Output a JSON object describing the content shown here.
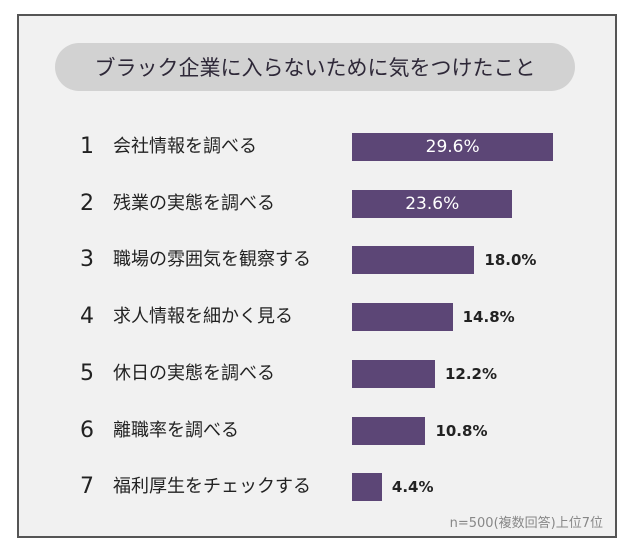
{
  "chart_data": {
    "type": "bar",
    "orientation": "horizontal",
    "title": "ブラック企業に入らないために気をつけたこと",
    "ranks": [
      "1",
      "2",
      "3",
      "4",
      "5",
      "6",
      "7"
    ],
    "categories": [
      "会社情報を調べる",
      "残業の実態を調べる",
      "職場の雰囲気を観察する",
      "求人情報を細かく見る",
      "休日の実態を調べる",
      "離職率を調べる",
      "福利厚生をチェックする"
    ],
    "values": [
      29.6,
      23.6,
      18.0,
      14.8,
      12.2,
      10.8,
      4.4
    ],
    "value_labels": [
      "29.6%",
      "23.6%",
      "18.0%",
      "14.8%",
      "12.2%",
      "10.8%",
      "4.4%"
    ],
    "unit": "%",
    "note": "n=500(複数回答)上位7位",
    "bar_color": "#5c4676"
  }
}
